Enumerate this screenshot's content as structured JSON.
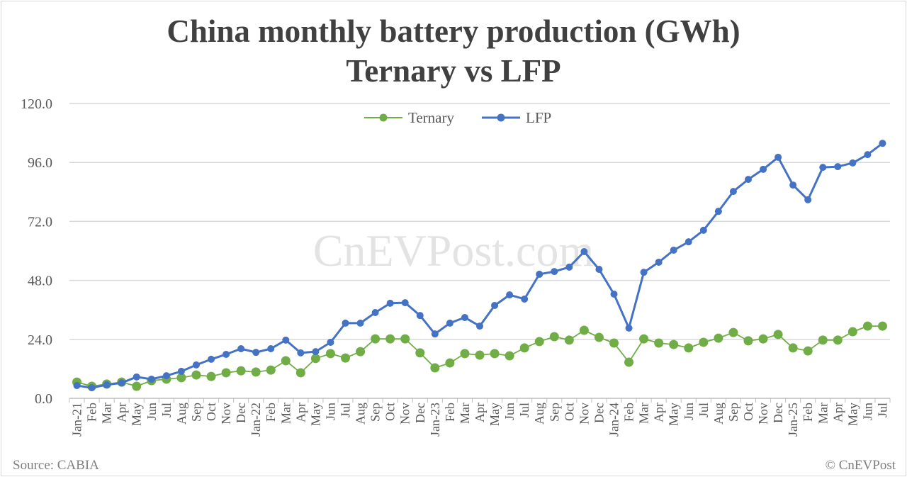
{
  "chart_data": {
    "type": "line",
    "title": "China monthly battery production (GWh)",
    "subtitle": "Ternary vs LFP",
    "categories": [
      "Jan-21",
      "Feb",
      "Mar",
      "Apr",
      "May",
      "Jun",
      "Jul",
      "Aug",
      "Sep",
      "Oct",
      "Nov",
      "Dec",
      "Jan-22",
      "Feb",
      "Mar",
      "Apr",
      "May",
      "Jun",
      "Jul",
      "Aug",
      "Sep",
      "Oct",
      "Nov",
      "Dec",
      "Jan-23",
      "Feb",
      "Mar",
      "Apr",
      "May",
      "Jun",
      "Jul",
      "Aug",
      "Sep",
      "Oct",
      "Nov",
      "Dec",
      "Jan-24",
      "Feb",
      "Mar",
      "Apr",
      "May",
      "Jun",
      "Jul",
      "Aug",
      "Sep",
      "Oct",
      "Nov",
      "Dec",
      "Jan-25",
      "Feb",
      "Mar",
      "Apr",
      "May",
      "Jun",
      "Jul"
    ],
    "series": [
      {
        "name": "Ternary",
        "color": "#70ad47",
        "values": [
          6.6,
          4.9,
          5.8,
          6.6,
          4.9,
          7.2,
          7.8,
          8.4,
          9.5,
          8.9,
          10.4,
          11.2,
          10.7,
          11.5,
          15.3,
          10.4,
          16.2,
          18.2,
          16.4,
          19.0,
          24.2,
          24.2,
          24.2,
          18.5,
          12.4,
          14.4,
          18.2,
          17.6,
          18.2,
          17.3,
          20.5,
          23.1,
          25.1,
          23.7,
          27.7,
          24.8,
          22.5,
          14.7,
          24.2,
          22.5,
          21.9,
          20.5,
          22.8,
          24.5,
          26.8,
          23.4,
          24.2,
          26.0,
          20.5,
          19.3,
          23.7,
          23.7,
          27.1,
          29.4,
          29.4
        ]
      },
      {
        "name": "LFP",
        "color": "#4472c4",
        "values": [
          5.2,
          4.3,
          5.5,
          6.3,
          8.7,
          7.8,
          9.2,
          11.0,
          13.6,
          15.9,
          17.9,
          20.2,
          18.7,
          20.2,
          23.7,
          18.5,
          19.0,
          22.8,
          30.6,
          30.6,
          34.9,
          38.7,
          38.9,
          33.7,
          26.2,
          30.6,
          32.9,
          29.4,
          37.8,
          42.1,
          40.4,
          50.5,
          51.6,
          53.4,
          59.7,
          52.5,
          42.4,
          28.6,
          51.3,
          55.4,
          60.3,
          63.7,
          68.4,
          76.1,
          84.2,
          89.1,
          93.2,
          98.1,
          86.8,
          80.8,
          94.0,
          94.3,
          95.8,
          99.2,
          103.8
        ]
      }
    ],
    "yticks": [
      "0.0",
      "24.0",
      "48.0",
      "72.0",
      "96.0",
      "120.0"
    ],
    "ylim": [
      0,
      120
    ],
    "grid": true,
    "legend": "top-center"
  },
  "watermark": "CnEVPost.com",
  "source": "Source: CABIA",
  "copyright": "© CnEVPost"
}
